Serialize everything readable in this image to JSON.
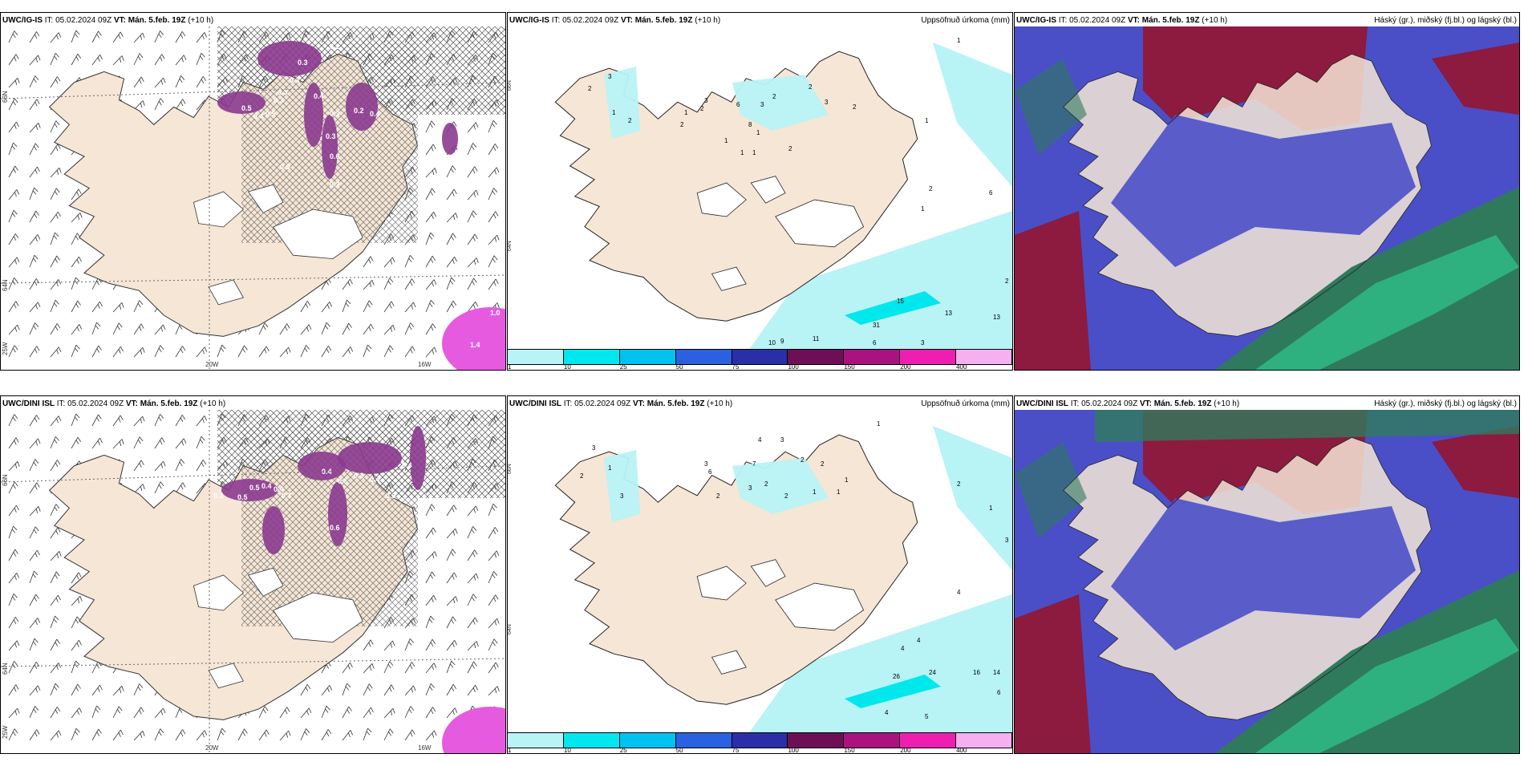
{
  "rows": [
    {
      "model": "UWC/IG-IS",
      "panels": [
        {
          "model": "UWC/IG-IS",
          "it_label": "IT:",
          "it": "05.02.2024 09Z",
          "vt_label": "VT:",
          "vt": "Mán. 5.feb. 19Z",
          "lead": "(+10 h)",
          "right_title": "",
          "lat_labels": [
            "66N",
            "64N",
            "25W"
          ],
          "lon_labels": [
            "20W",
            "16W"
          ],
          "values": [
            "0.3",
            "0.2",
            "0.3",
            "0.3",
            "0.3",
            "0.4",
            "0.5",
            "0.4",
            "0.5",
            "0.3",
            "0.2",
            "0.4",
            "0.3",
            "0.6",
            "0.5",
            "0.3",
            "1.0",
            "1.4"
          ]
        },
        {
          "model": "UWC/IG-IS",
          "it_label": "IT:",
          "it": "05.02.2024 09Z",
          "vt_label": "VT:",
          "vt": "Mán. 5.feb. 19Z",
          "lead": "(+10 h)",
          "right_title": "Uppsöfnuð úrkoma (mm)",
          "lat_labels": [
            "66N",
            "64N"
          ],
          "values": [
            "1",
            "2",
            "3",
            "1",
            "2",
            "3",
            "6",
            "8",
            "3",
            "2",
            "2",
            "3",
            "2",
            "1",
            "2",
            "2",
            "1",
            "1",
            "1",
            "1",
            "2",
            "1",
            "6",
            "2",
            "1",
            "2",
            "15",
            "13",
            "13",
            "31",
            "11",
            "10",
            "9",
            "6",
            "3"
          ]
        },
        {
          "model": "UWC/IG-IS",
          "it_label": "IT:",
          "it": "05.02.2024 09Z",
          "vt_label": "VT:",
          "vt": "Mán. 5.feb. 19Z",
          "lead": "(+10 h)",
          "right_title": "Háský (gr.), miðský (fj.bl.) og lágský (bl.)"
        }
      ]
    },
    {
      "model": "UWC/DINI ISL",
      "panels": [
        {
          "model": "UWC/DINI ISL",
          "it_label": "IT:",
          "it": "05.02.2024 09Z",
          "vt_label": "VT:",
          "vt": "Mán. 5.feb. 19Z",
          "lead": "(+10 h)",
          "right_title": "",
          "lat_labels": [
            "66N",
            "64N",
            "25W"
          ],
          "lon_labels": [
            "20W",
            "16W"
          ],
          "values": [
            "0.3",
            "0.5",
            "0.5",
            "0.4",
            "0.4",
            "0.3",
            "0.4",
            "0.5",
            "0.3",
            "0.6",
            "0.4",
            "0.3",
            "0.4"
          ]
        },
        {
          "model": "UWC/DINI ISL",
          "it_label": "IT:",
          "it": "05.02.2024 09Z",
          "vt_label": "VT:",
          "vt": "Mán. 5.feb. 19Z",
          "lead": "(+10 h)",
          "right_title": "Uppsöfnuð úrkoma (mm)",
          "lat_labels": [
            "66N",
            "64N"
          ],
          "values": [
            "1",
            "2",
            "3",
            "1",
            "3",
            "3",
            "6",
            "7",
            "4",
            "3",
            "2",
            "2",
            "1",
            "2",
            "3",
            "2",
            "2",
            "1",
            "1",
            "2",
            "1",
            "3",
            "4",
            "4",
            "4",
            "26",
            "24",
            "16",
            "14",
            "6",
            "5",
            "4"
          ]
        },
        {
          "model": "UWC/DINI ISL",
          "it_label": "IT:",
          "it": "05.02.2024 09Z",
          "vt_label": "VT:",
          "vt": "Mán. 5.feb. 19Z",
          "lead": "(+10 h)",
          "right_title": "Háský (gr.), miðský (fj.bl.) og lágský (bl.)"
        }
      ]
    }
  ],
  "colorbar": {
    "ticks": [
      "1",
      "10",
      "25",
      "50",
      "75",
      "100",
      "150",
      "200",
      "400"
    ],
    "colors": [
      "#b8f3f6",
      "#00e7ee",
      "#00c2f0",
      "#2b61e0",
      "#2a2fa8",
      "#6d0f55",
      "#a9127f",
      "#ee1fb0",
      "#f5b0ef"
    ]
  },
  "colors": {
    "land": "#f5e6d6",
    "sea": "#ffffff",
    "ice": "#ffffff",
    "precip_light": "#b8f3f6",
    "precip_mid": "#00e7ee",
    "snow_purple": "#8c3a8f",
    "snow_pink": "#e65ae0",
    "cloud_high": "#8d1a3f",
    "cloud_mid": "#4a4fc8",
    "cloud_low": "#2f7a5c",
    "cloud_green": "#2ec98d"
  }
}
